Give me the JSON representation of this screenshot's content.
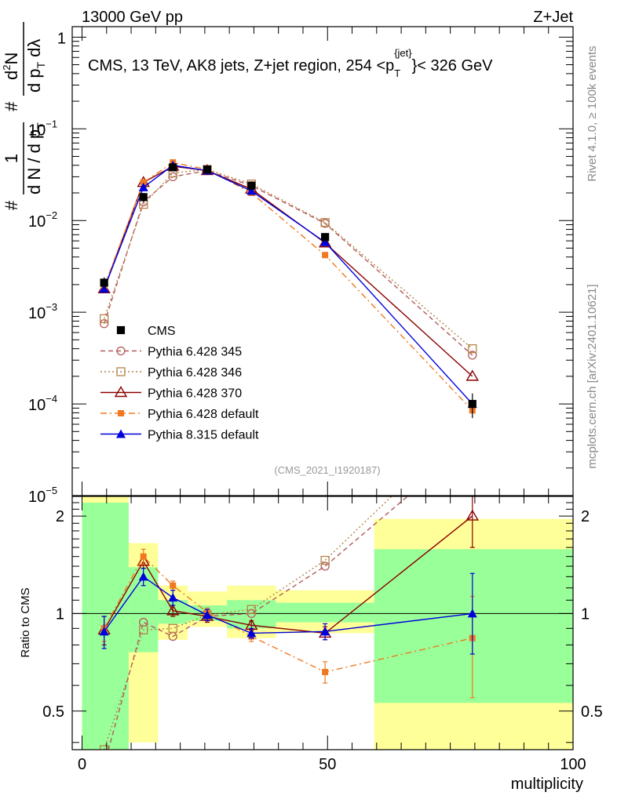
{
  "header": {
    "left": "13000 GeV pp",
    "right": "Z+Jet"
  },
  "side": {
    "rivet": "Rivet 4.1.0, ≥ 100k events",
    "mcplots": "mcplots.cern.ch [arXiv:2401.10621]"
  },
  "analysis_id": "(CMS_2021_I1920187)",
  "colors": {
    "data": "#000000",
    "p345": "#b35a5a",
    "p346": "#b5844a",
    "p370": "#8b0000",
    "p6def": "#f07820",
    "p8def": "#0000dd",
    "band_inner": "#99ff99",
    "band_outer": "#ffff99"
  },
  "chart_data": [
    {
      "type": "line",
      "scale": "log",
      "title": "CMS, 13 TeV, AK8 jets, Z+jet region, 254 <p",
      "title_sup": "{jet}",
      "title_sub": "T",
      "title_tail": "}< 326 GeV",
      "ylabel": "# 1/(dN / dpT) # d²N/(dpT dλ)",
      "ylabel_parts": {
        "hash": "#",
        "one": "1",
        "denom": "d N / d p",
        "denom_sub": "T",
        "num": "d²N",
        "num_d": "d",
        "num_sup": "2",
        "num_n": "N",
        "den2": "d p",
        "den2_sub": "T",
        "den2_tail": "dλ"
      },
      "ylim": [
        1e-05,
        1.3
      ],
      "ticks_y": [
        {
          "v": 1,
          "base": "1",
          "exp": ""
        },
        {
          "v": 0.1,
          "base": "10",
          "exp": "−1"
        },
        {
          "v": 0.01,
          "base": "10",
          "exp": "−2"
        },
        {
          "v": 0.001,
          "base": "10",
          "exp": "−3"
        },
        {
          "v": 0.0001,
          "base": "10",
          "exp": "−4"
        },
        {
          "v": 1e-05,
          "base": "10",
          "exp": "−5"
        }
      ],
      "legend": [
        {
          "key": "data",
          "label": "CMS",
          "marker": "square_filled",
          "line": "none"
        },
        {
          "key": "p345",
          "label": "Pythia 6.428 345",
          "marker": "circle_open",
          "line": "dash"
        },
        {
          "key": "p346",
          "label": "Pythia 6.428 346",
          "marker": "square_open",
          "line": "dot"
        },
        {
          "key": "p370",
          "label": "Pythia 6.428 370",
          "marker": "triangle_open",
          "line": "solid"
        },
        {
          "key": "p6def",
          "label": "Pythia 6.428 default",
          "marker": "square_small",
          "line": "dashdot"
        },
        {
          "key": "p8def",
          "label": "Pythia 8.315 default",
          "marker": "triangle_filled",
          "line": "solid"
        }
      ],
      "bins": [
        [
          0,
          9.5
        ],
        [
          9.5,
          15.5
        ],
        [
          15.5,
          21.5
        ],
        [
          21.5,
          29.5
        ],
        [
          29.5,
          39.5
        ],
        [
          39.5,
          59.5
        ],
        [
          59.5,
          100
        ]
      ],
      "x": [
        4.5,
        12.5,
        18.5,
        25.5,
        34.5,
        49.5,
        79.5
      ],
      "data": {
        "name": "CMS",
        "values": [
          0.0021,
          0.018,
          0.038,
          0.036,
          0.024,
          0.0066,
          0.0001
        ],
        "err": [
          0.0003,
          0.002,
          0.003,
          0.002,
          0.002,
          0.0006,
          3e-05
        ]
      },
      "series": [
        {
          "key": "p345",
          "name": "Pythia 6.428 345",
          "values": [
            0.00075,
            0.016,
            0.03,
            0.035,
            0.024,
            0.0093,
            0.00034
          ]
        },
        {
          "key": "p346",
          "name": "Pythia 6.428 346",
          "values": [
            0.00085,
            0.015,
            0.033,
            0.036,
            0.025,
            0.0095,
            0.0004
          ]
        },
        {
          "key": "p370",
          "name": "Pythia 6.428 370",
          "values": [
            0.0018,
            0.026,
            0.039,
            0.035,
            0.022,
            0.0057,
            0.0002
          ]
        },
        {
          "key": "p6def",
          "name": "Pythia 6.428 default",
          "values": [
            0.0019,
            0.026,
            0.043,
            0.036,
            0.02,
            0.0042,
            8.5e-05
          ]
        },
        {
          "key": "p8def",
          "name": "Pythia 8.315 default",
          "values": [
            0.0018,
            0.023,
            0.04,
            0.035,
            0.021,
            0.0058,
            0.0001
          ]
        }
      ]
    },
    {
      "type": "line",
      "scale": "log",
      "ylabel": "Ratio to CMS",
      "xlabel": "multiplicity",
      "xlim": [
        -2,
        100
      ],
      "ylim": [
        0.38,
        2.3
      ],
      "ticks_x": [
        0,
        50,
        100
      ],
      "ticks_y": [
        0.5,
        1,
        2
      ],
      "band_inner": [
        [
          0.3,
          2.2
        ],
        [
          0.76,
          1.39
        ],
        [
          0.93,
          1.1
        ],
        [
          0.95,
          1.06
        ],
        [
          0.9,
          1.1
        ],
        [
          0.94,
          1.08
        ],
        [
          0.53,
          1.58
        ]
      ],
      "band_outer": [
        [
          0.3,
          2.3
        ],
        [
          0.4,
          1.65
        ],
        [
          0.83,
          1.22
        ],
        [
          0.91,
          1.17
        ],
        [
          0.84,
          1.22
        ],
        [
          0.87,
          1.18
        ],
        [
          0.36,
          1.96
        ]
      ],
      "series": [
        {
          "key": "p345",
          "name": "Pythia 6.428 345",
          "values": [
            0.34,
            0.94,
            0.85,
            0.98,
            1.0,
            1.4,
            3.4
          ]
        },
        {
          "key": "p346",
          "name": "Pythia 6.428 346",
          "values": [
            0.38,
            0.89,
            0.9,
            0.99,
            1.03,
            1.46,
            4.0
          ]
        },
        {
          "key": "p370",
          "name": "Pythia 6.428 370",
          "values": [
            0.89,
            1.45,
            1.02,
            0.98,
            0.92,
            0.87,
            2.0
          ]
        },
        {
          "key": "p6def",
          "name": "Pythia 6.428 default",
          "values": [
            0.9,
            1.5,
            1.22,
            1.01,
            0.85,
            0.66,
            0.84
          ]
        },
        {
          "key": "p8def",
          "name": "Pythia 8.315 default",
          "values": [
            0.88,
            1.3,
            1.12,
            0.99,
            0.87,
            0.88,
            1.0
          ]
        }
      ],
      "errors": {
        "p8def": [
          [
            0.78,
            0.98
          ],
          [
            1.22,
            1.38
          ],
          [
            1.06,
            1.18
          ],
          [
            0.95,
            1.03
          ],
          [
            0.84,
            0.9
          ],
          [
            0.83,
            0.93
          ],
          [
            0.75,
            1.33
          ]
        ],
        "p370": [
          [
            0.8,
            0.98
          ],
          [
            1.38,
            1.52
          ],
          [
            0.98,
            1.06
          ],
          [
            0.94,
            1.02
          ],
          [
            0.89,
            0.95
          ],
          [
            0.83,
            0.91
          ],
          [
            1.6,
            2.5
          ]
        ],
        "p6def": [
          [
            0.82,
            0.98
          ],
          [
            1.42,
            1.58
          ],
          [
            1.18,
            1.26
          ],
          [
            0.98,
            1.04
          ],
          [
            0.82,
            0.88
          ],
          [
            0.61,
            0.71
          ],
          [
            0.55,
            1.13
          ]
        ]
      }
    }
  ]
}
